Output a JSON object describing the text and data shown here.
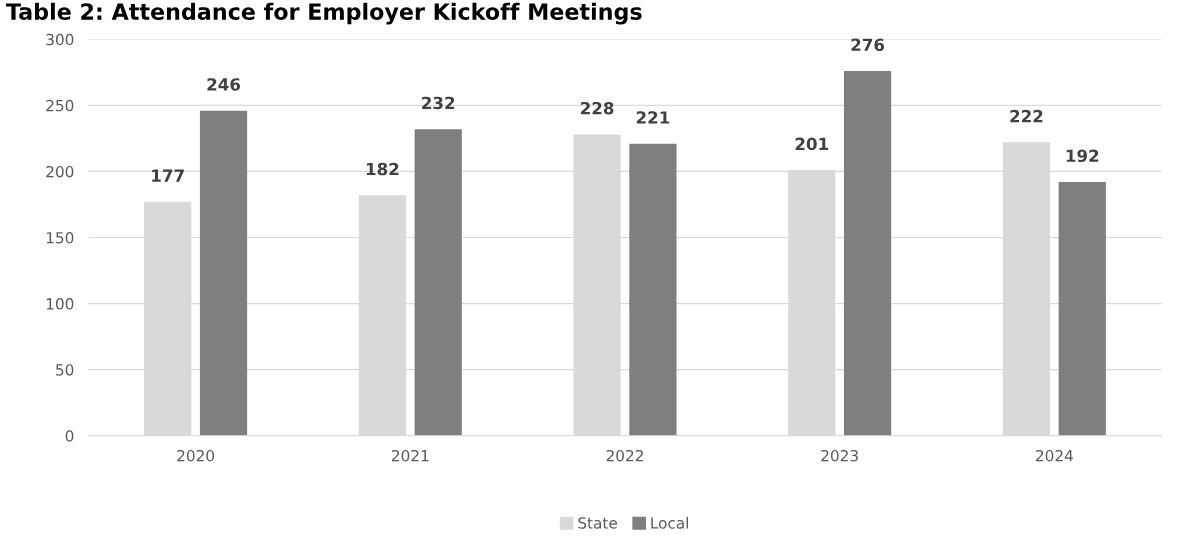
{
  "chart_data": {
    "type": "bar",
    "title": "Table 2: Attendance for Employer Kickoff Meetings",
    "categories": [
      "2020",
      "2021",
      "2022",
      "2023",
      "2024"
    ],
    "series": [
      {
        "name": "State",
        "color": "#d9d9d9",
        "values": [
          177,
          182,
          228,
          201,
          222
        ]
      },
      {
        "name": "Local",
        "color": "#7f7f7f",
        "values": [
          246,
          232,
          221,
          276,
          192
        ]
      }
    ],
    "ylim": [
      0,
      300
    ],
    "yticks": [
      0,
      50,
      100,
      150,
      200,
      250,
      300
    ],
    "grid": "y",
    "legend": "bottom",
    "data_labels": true
  }
}
